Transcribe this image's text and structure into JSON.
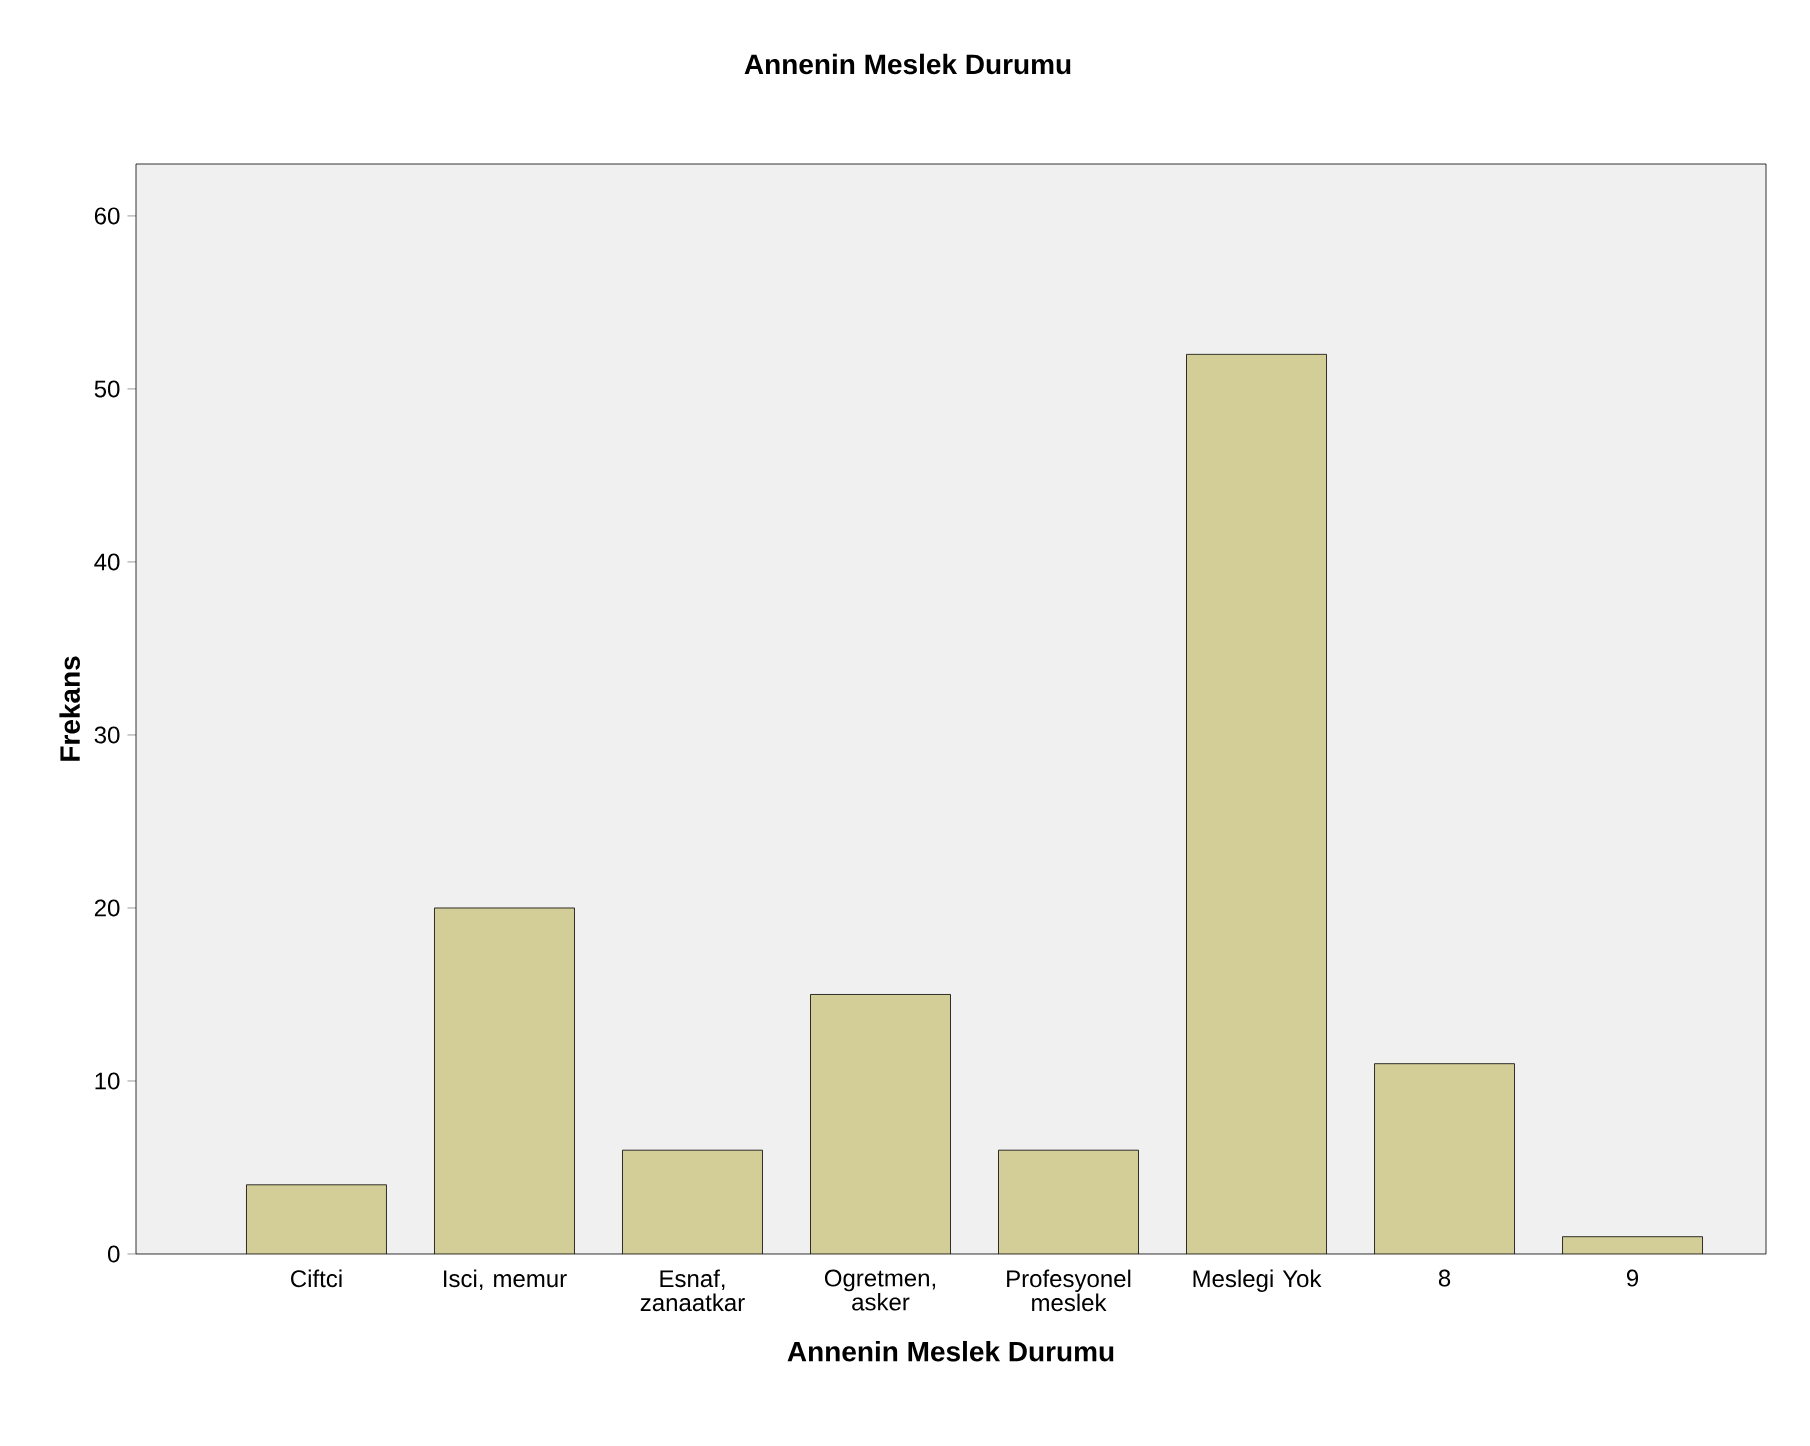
{
  "chart_data": {
    "type": "bar",
    "title": "Annenin Meslek Durumu",
    "xlabel": "Annenin Meslek Durumu",
    "ylabel": "Frekans",
    "categories": [
      "Ciftci",
      "Isci, memur",
      "Esnaf, zanaatkar",
      "Ogretmen, asker",
      "Profesyonel meslek",
      "Meslegi Yok",
      "8",
      "9"
    ],
    "values": [
      4,
      20,
      6,
      15,
      6,
      52,
      11,
      1
    ],
    "color": "#d3ce97",
    "ylim": [
      0,
      63
    ],
    "yticks": [
      0,
      10,
      20,
      30,
      40,
      50,
      60
    ]
  }
}
